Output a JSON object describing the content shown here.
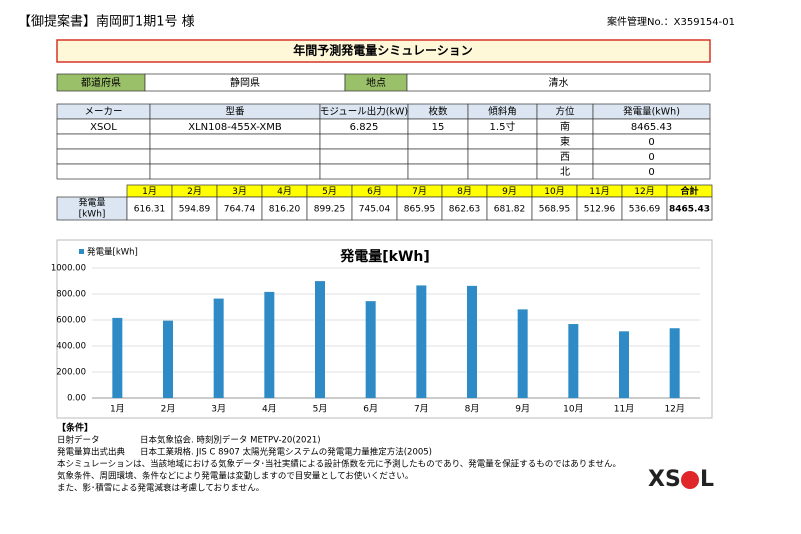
{
  "header": {
    "left": "【御提案書】南岡町1期1号 様",
    "right": "案件管理No.：X359154-01"
  },
  "title": "年間予測発電量シミュレーション",
  "location": {
    "pref_label": "都道府県",
    "pref": "静岡県",
    "site_label": "地点",
    "site": "清水"
  },
  "spec_table": {
    "headers": [
      "メーカー",
      "型番",
      "モジュール出力(kW)",
      "枚数",
      "傾斜角",
      "方位",
      "発電量(kWh)"
    ],
    "rows": [
      [
        "XSOL",
        "XLN108-455X-XMB",
        6.825,
        15,
        "1.5寸",
        "南",
        8465.43
      ]
    ],
    "other_directions": [
      {
        "direction": "東",
        "output": 0
      },
      {
        "direction": "西",
        "output": 0
      },
      {
        "direction": "北",
        "output": 0
      }
    ]
  },
  "monthly_table": {
    "row_label": [
      "発電量",
      "[kWh]"
    ],
    "headers": [
      "1月",
      "2月",
      "3月",
      "4月",
      "5月",
      "6月",
      "7月",
      "8月",
      "9月",
      "10月",
      "11月",
      "12月",
      "合計"
    ],
    "values": [
      "616.31",
      "594.89",
      "764.74",
      "816.20",
      "899.25",
      "745.04",
      "865.95",
      "862.63",
      "681.82",
      "568.95",
      "512.96",
      "536.69",
      "8465.43"
    ]
  },
  "chart_data": {
    "type": "bar",
    "title": "発電量[kWh]",
    "categories": [
      "1月",
      "2月",
      "3月",
      "4月",
      "5月",
      "6月",
      "7月",
      "8月",
      "9月",
      "10月",
      "11月",
      "12月"
    ],
    "series": [
      {
        "name": "発電量[kWh]",
        "color": "#2e8bc6",
        "values": [
          616.31,
          594.89,
          764.74,
          816.2,
          899.25,
          745.04,
          865.95,
          862.63,
          681.82,
          568.95,
          512.96,
          536.69
        ]
      }
    ],
    "ylim": [
      0,
      1000
    ],
    "yticks": [
      {
        "value": 0,
        "label": "0.00"
      },
      {
        "value": 200,
        "label": "200.00"
      },
      {
        "value": 400,
        "label": "400.00"
      },
      {
        "value": 600,
        "label": "600.00"
      },
      {
        "value": 800,
        "label": "800.00"
      },
      {
        "value": 1000,
        "label": "1000.00"
      }
    ],
    "grid": true,
    "legend": "top-left"
  },
  "notes": {
    "heading": "【条件】",
    "items": [
      [
        "日射データ",
        "日本気象協会. 時刻別データ METPV-20(2021)"
      ],
      [
        "発電量算出式出典",
        "日本工業規格. JIS C 8907 太陽光発電システムの発電電力量推定方法(2005)"
      ]
    ],
    "lines": [
      "本シミュレーションは、当該地域における気象データ･当社実績による設計係数を元に予測したものであり、発電量を保証するものではありません。",
      "気象条件、周囲環境、条件などにより発電量は変動しますので目安量としてお使いください。",
      "また、影･積雪による発電減衰は考慮しておりません。"
    ]
  },
  "logo": {
    "left": "XS",
    "right": "L"
  }
}
